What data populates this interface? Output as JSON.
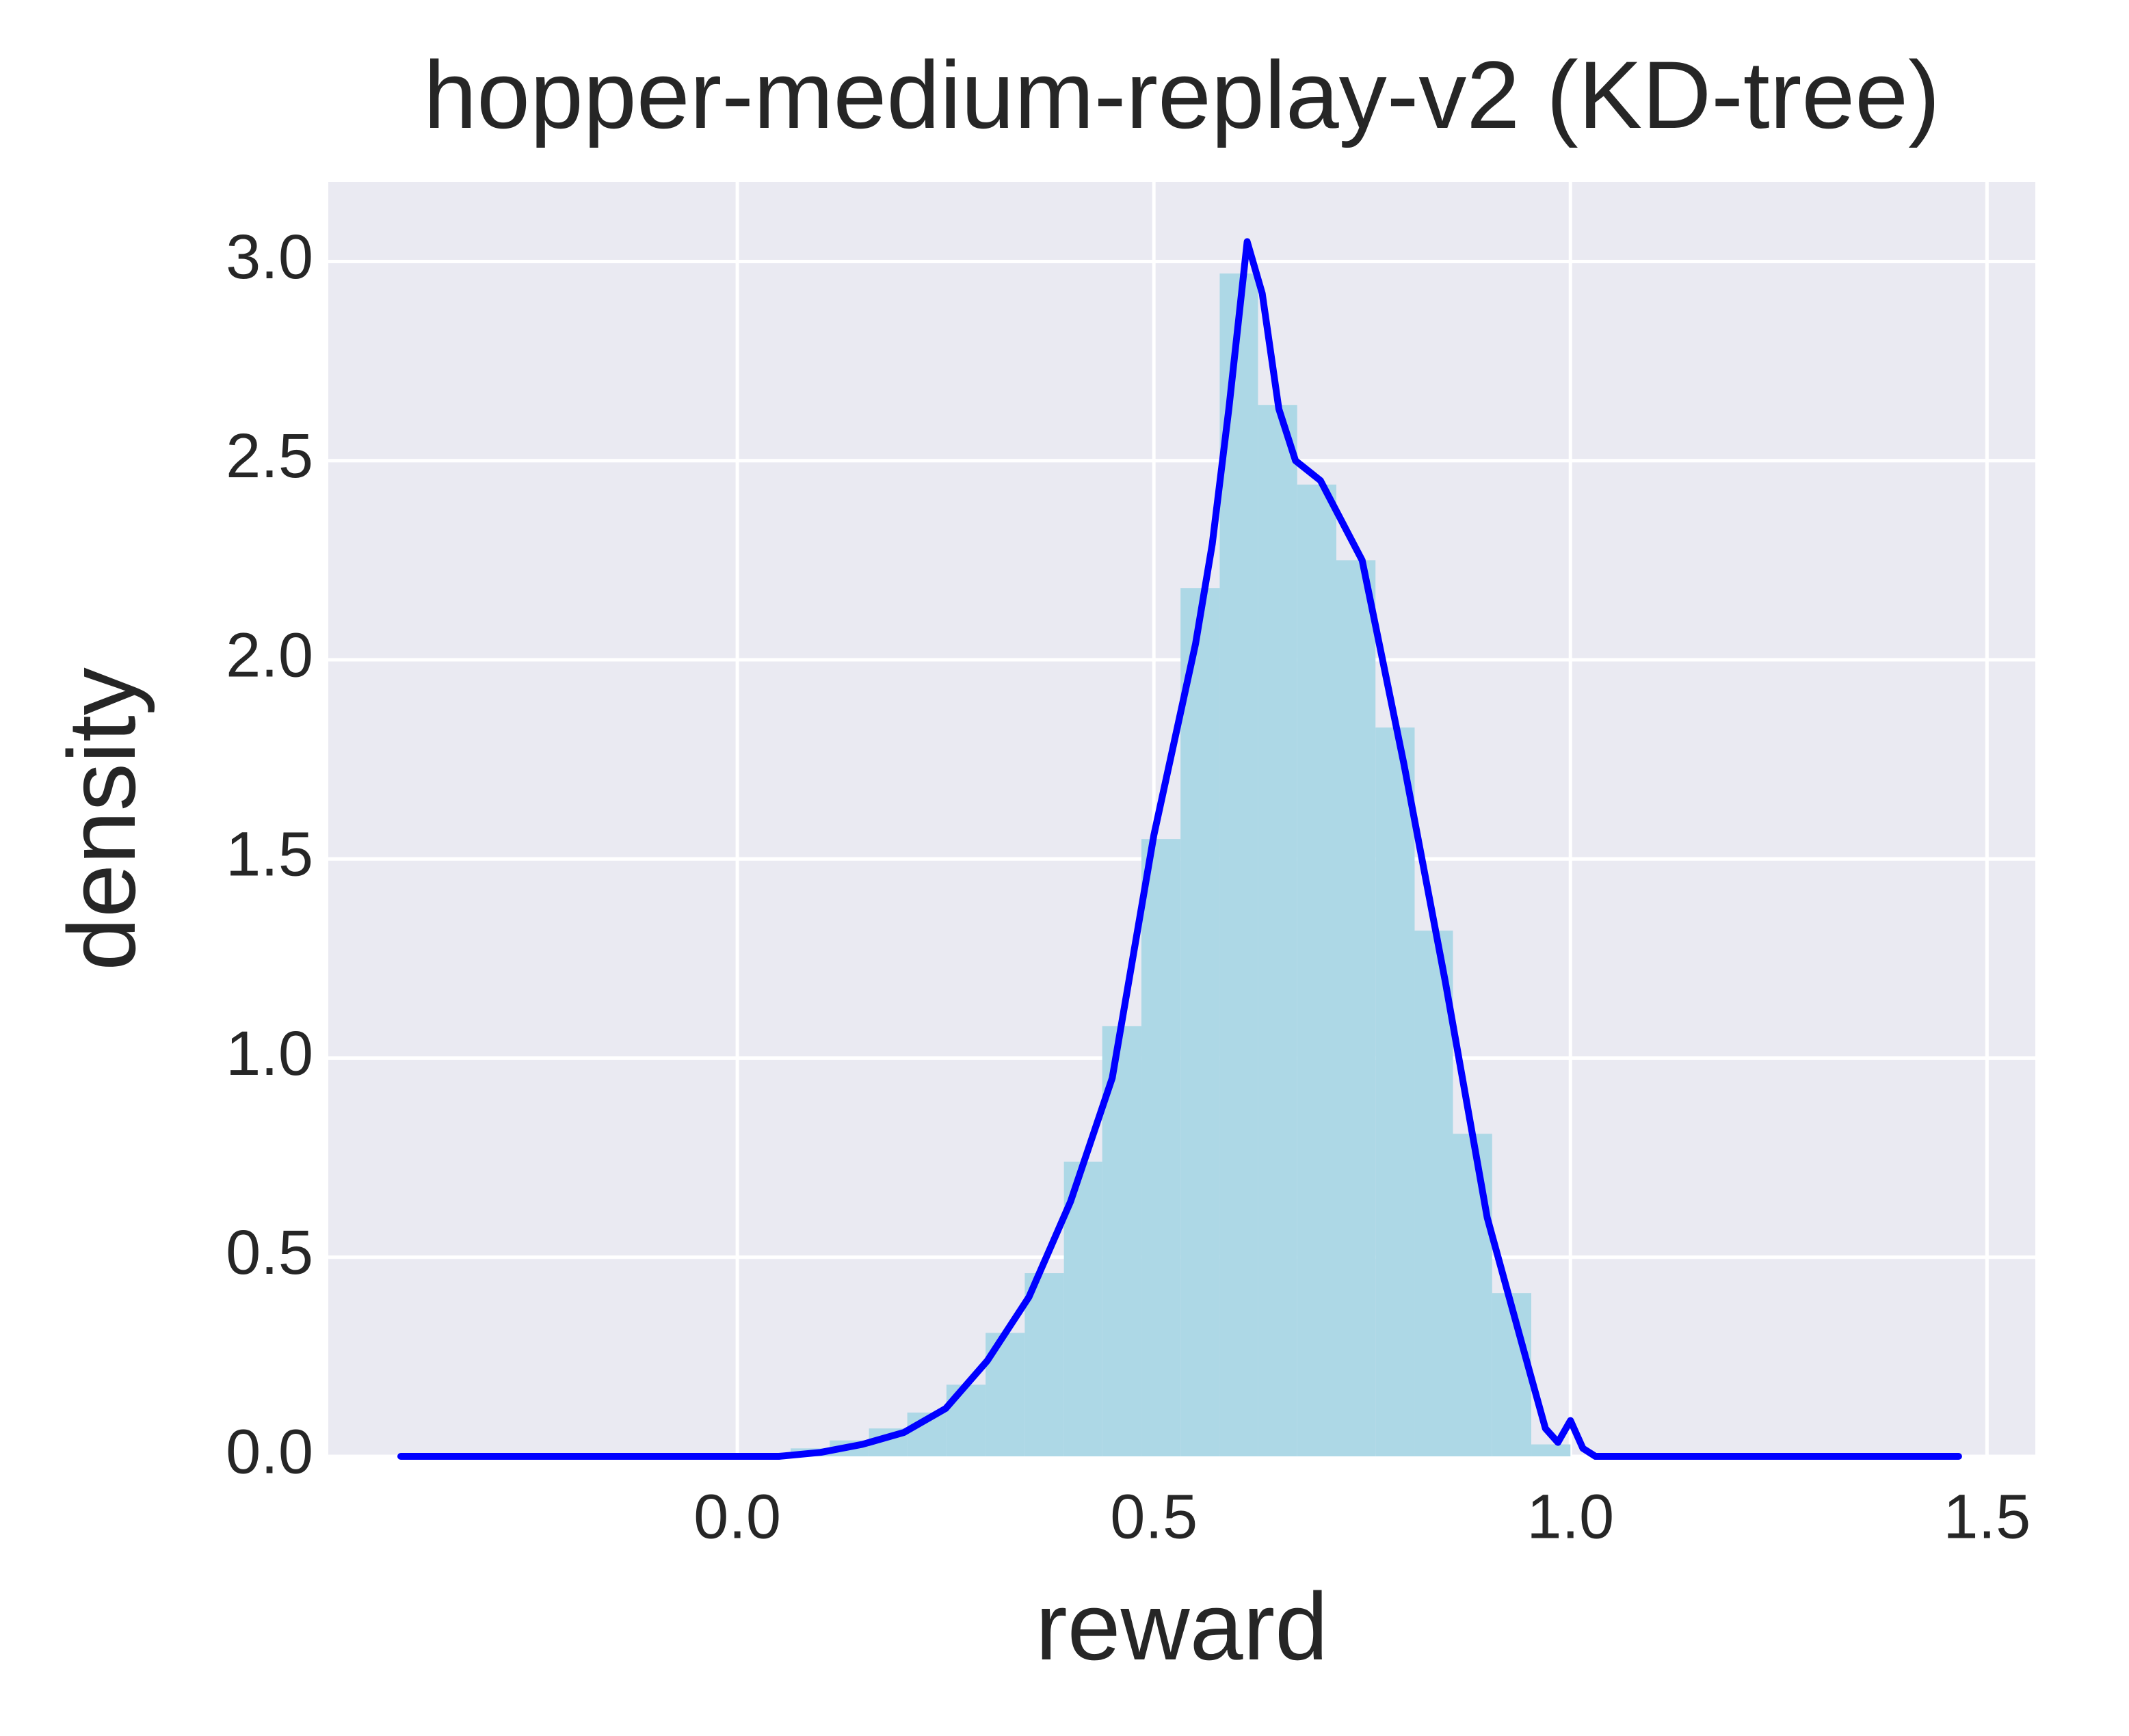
{
  "chart_data": {
    "type": "histogram",
    "title": "hopper-medium-replay-v2 (KD-tree)",
    "x_label": "reward",
    "y_label": "density",
    "bins": [
      0.064,
      0.111,
      0.158,
      0.204,
      0.251,
      0.298,
      0.345,
      0.392,
      0.438,
      0.485,
      0.532,
      0.579,
      0.625,
      0.672,
      0.719,
      0.766,
      0.813,
      0.859,
      0.906,
      0.953,
      1.0
    ],
    "values": [
      0.02,
      0.04,
      0.07,
      0.11,
      0.18,
      0.31,
      0.46,
      0.74,
      1.08,
      1.55,
      2.18,
      2.97,
      2.64,
      2.44,
      2.25,
      1.83,
      1.32,
      0.81,
      0.41,
      0.03
    ],
    "color": "#add8e6",
    "kde": {
      "color": "#0000ff",
      "x": [
        -0.404,
        0.0,
        0.05,
        0.1,
        0.15,
        0.2,
        0.25,
        0.3,
        0.35,
        0.4,
        0.45,
        0.5,
        0.55,
        0.57,
        0.59,
        0.612,
        0.63,
        0.65,
        0.67,
        0.7,
        0.75,
        0.8,
        0.85,
        0.9,
        0.95,
        0.97,
        0.985,
        1.0,
        1.015,
        1.03,
        1.2,
        1.466
      ],
      "y": [
        0,
        0,
        0,
        0.01,
        0.03,
        0.06,
        0.12,
        0.24,
        0.4,
        0.64,
        0.95,
        1.56,
        2.04,
        2.29,
        2.63,
        3.05,
        2.92,
        2.63,
        2.5,
        2.45,
        2.25,
        1.74,
        1.19,
        0.6,
        0.22,
        0.07,
        0.035,
        0.09,
        0.02,
        0,
        0,
        0
      ]
    },
    "xlim": [
      -0.491,
      1.558
    ],
    "ylim": [
      0,
      3.2
    ],
    "xticks": [
      {
        "value": 0,
        "label": "0.0"
      },
      0.5,
      {
        "value": 1,
        "label": "1.0"
      },
      1.5
    ],
    "yticks": [
      {
        "value": 0,
        "label": "0.0"
      },
      0.5,
      {
        "value": 1,
        "label": "1.0"
      },
      1.5,
      {
        "value": 2,
        "label": "2.0"
      },
      2.5,
      {
        "value": 3,
        "label": "3.0"
      }
    ],
    "grid": true
  }
}
